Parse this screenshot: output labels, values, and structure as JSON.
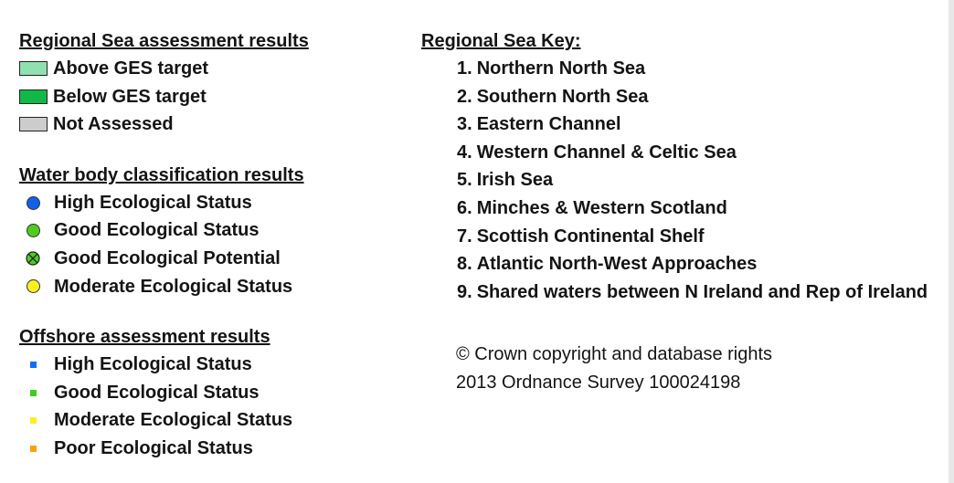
{
  "regional_results": {
    "heading": "Regional Sea assessment results",
    "items": [
      {
        "label": "Above GES target",
        "color": "#90e0b0"
      },
      {
        "label": "Below GES target",
        "color": "#10b848"
      },
      {
        "label": "Not Assessed",
        "color": "#cccccc"
      }
    ]
  },
  "water_body": {
    "heading": "Water body classification results",
    "items": [
      {
        "label": "High Ecological Status",
        "color": "#1060e8",
        "icon": "blue-circle-icon"
      },
      {
        "label": "Good Ecological Status",
        "color": "#50cc20",
        "icon": "green-circle-icon"
      },
      {
        "label": "Good Ecological Potential",
        "color": "#50cc20",
        "icon": "green-crossed-circle-icon"
      },
      {
        "label": "Moderate Ecological Status",
        "color": "#f8f020",
        "icon": "yellow-circle-icon"
      }
    ]
  },
  "offshore": {
    "heading": "Offshore assessment results",
    "items": [
      {
        "label": "High Ecological Status",
        "color": "#1070f0",
        "icon": "blue-square-icon"
      },
      {
        "label": "Good Ecological Status",
        "color": "#40cc20",
        "icon": "green-square-icon"
      },
      {
        "label": "Moderate Ecological Status",
        "color": "#f8f020",
        "icon": "yellow-square-icon"
      },
      {
        "label": "Poor Ecological Status",
        "color": "#f8a010",
        "icon": "orange-square-icon"
      }
    ]
  },
  "regional_key": {
    "heading": "Regional Sea Key:",
    "items": [
      {
        "num": "1.",
        "label": "Northern North Sea"
      },
      {
        "num": "2.",
        "label": "Southern North Sea"
      },
      {
        "num": "3.",
        "label": "Eastern Channel"
      },
      {
        "num": "4.",
        "label": "Western Channel & Celtic Sea"
      },
      {
        "num": "5.",
        "label": "Irish Sea"
      },
      {
        "num": "6.",
        "label": "Minches & Western Scotland"
      },
      {
        "num": "7.",
        "label": "Scottish Continental Shelf"
      },
      {
        "num": "8.",
        "label": "Atlantic North-West Approaches"
      },
      {
        "num": "9.",
        "label": "Shared waters between N Ireland and Rep of Ireland"
      }
    ]
  },
  "copyright": {
    "line1": "© Crown copyright and database rights",
    "line2": "2013 Ordnance Survey 100024198"
  }
}
